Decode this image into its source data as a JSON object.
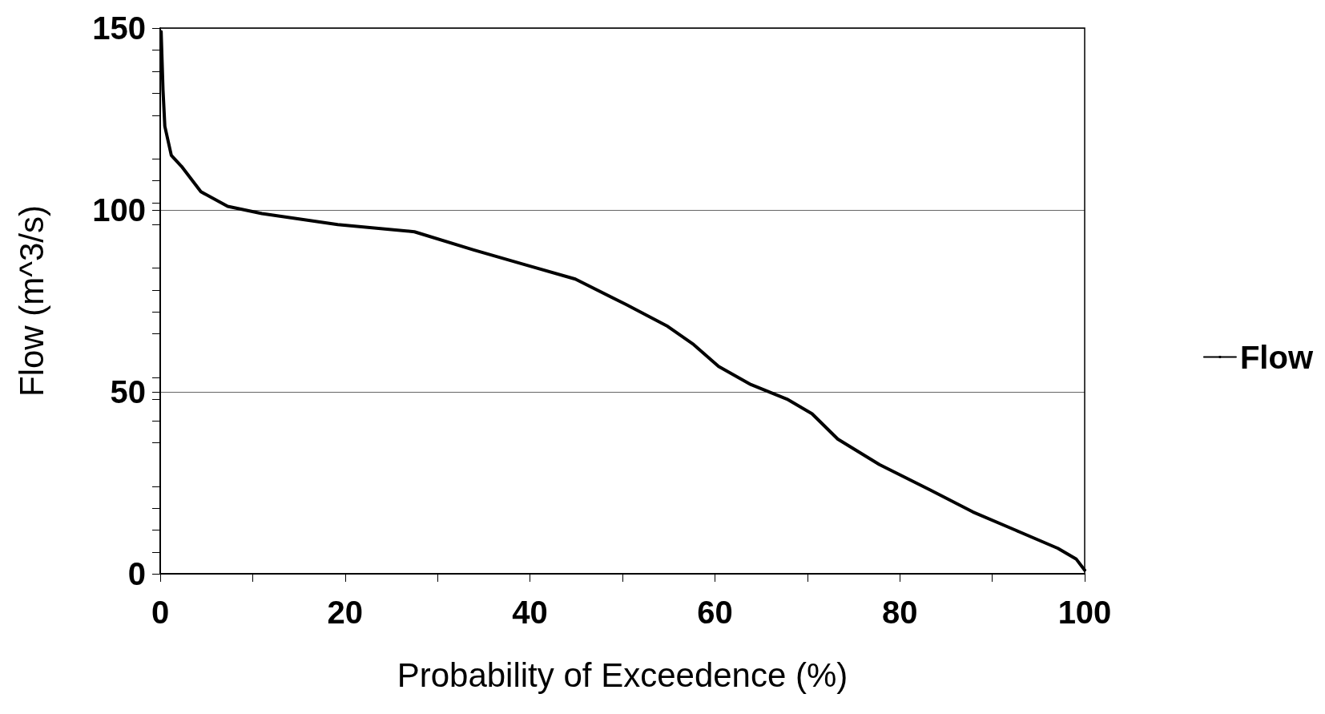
{
  "chart_data": {
    "type": "line",
    "xlabel": "Probability of Exceedence (%)",
    "ylabel": "Flow (m^3/s)",
    "xlim": [
      0,
      100
    ],
    "xticks": [
      0,
      20,
      40,
      60,
      80,
      100
    ],
    "ylim": [
      0,
      150
    ],
    "yticks": [
      0,
      50,
      100,
      150
    ],
    "grid": "y",
    "legend": "right",
    "series": [
      {
        "name": "Flow",
        "color": "#000000",
        "x": [
          0.1,
          0.3,
          0.5,
          1.2,
          2.3,
          4.4,
          7.3,
          11,
          19.2,
          27.5,
          33.9,
          39.4,
          44.9,
          50.4,
          54.9,
          57.7,
          60.4,
          63.9,
          67.8,
          70.5,
          73.3,
          77.8,
          83.3,
          87.9,
          92.5,
          97.1,
          99.1,
          100
        ],
        "values": [
          149,
          133,
          123,
          115,
          112,
          105,
          101,
          99,
          96,
          94,
          89,
          85,
          81,
          74,
          68,
          63,
          57,
          52,
          48,
          44,
          37,
          30,
          23,
          17,
          12,
          7,
          4,
          1
        ]
      }
    ]
  }
}
